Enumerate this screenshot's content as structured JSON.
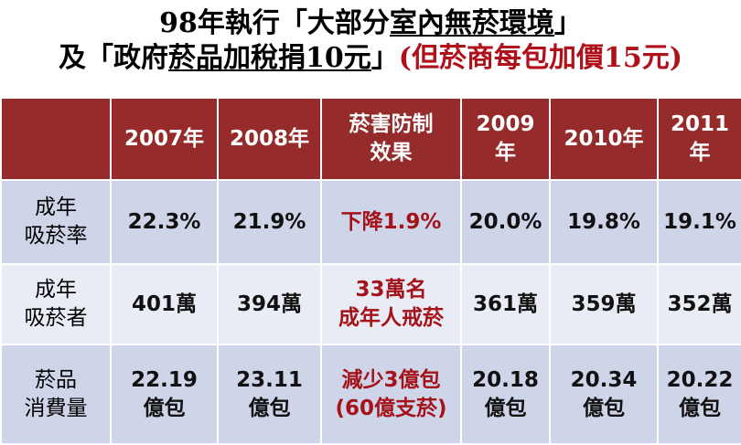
{
  "title": {
    "line1": [
      "98年執行「大部分",
      "室內無菸環境",
      "」"
    ],
    "line2": [
      "及「政府",
      "菸品加稅捐10元",
      "」",
      "(但菸商每包加價15元)"
    ]
  },
  "table": {
    "header": [
      "2007年",
      "2008年",
      "菸害防制\n效果",
      "2009\n年",
      "2010年",
      "2011\n年"
    ],
    "rows": [
      {
        "label": "成年\n吸菸率",
        "cells": [
          "22.3%",
          "21.9%",
          "下降1.9%",
          "20.0%",
          "19.8%",
          "19.1%"
        ]
      },
      {
        "label": "成年\n吸菸者",
        "cells": [
          "401萬",
          "394萬",
          "33萬名\n成年人戒菸",
          "361萬",
          "359萬",
          "352萬"
        ]
      },
      {
        "label": "菸品\n消費量",
        "cells": [
          "22.19\n億包",
          "23.11\n億包",
          "減少3億包\n(60億支菸)",
          "20.18\n億包",
          "20.34\n億包",
          "20.22\n億包"
        ]
      }
    ]
  }
}
